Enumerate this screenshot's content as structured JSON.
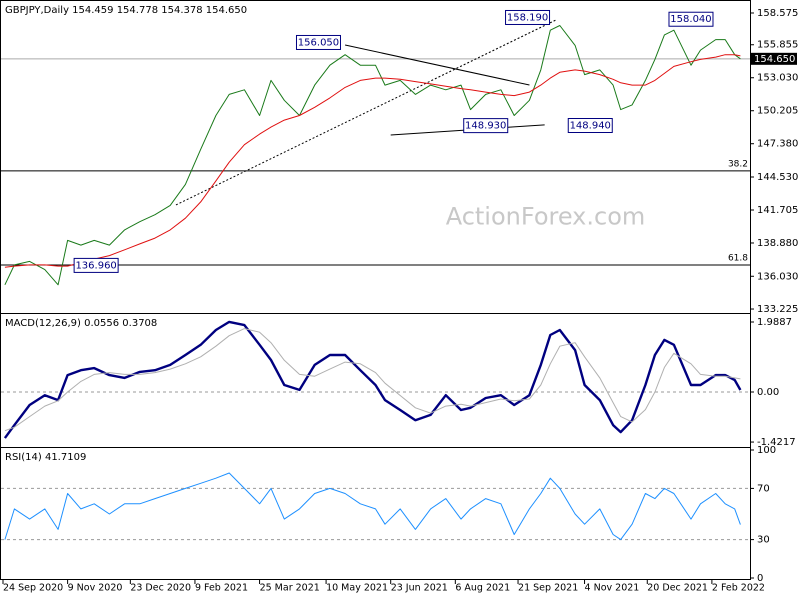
{
  "chart_data": [
    {
      "type": "line",
      "title": "GBPJPY,Daily 154.459 154.778 154.378 154.650",
      "watermark": "ActionForex.com",
      "x": [
        1,
        6,
        14,
        22,
        29,
        34,
        41,
        48,
        56,
        64,
        72,
        80,
        88,
        96,
        104,
        112,
        119,
        127,
        135,
        141,
        148,
        156,
        164,
        172,
        180,
        188,
        196,
        201,
        209,
        217,
        225,
        233,
        241,
        246,
        254,
        262,
        269,
        277,
        283,
        288,
        293,
        301,
        306,
        314,
        321,
        325,
        331,
        338,
        343,
        348,
        353,
        362,
        367,
        375,
        380,
        385,
        388
      ],
      "series": [
        {
          "color": "#1a7a1a",
          "style": "thin",
          "values": [
            135.3,
            137.0,
            137.3,
            136.6,
            135.3,
            139.1,
            138.7,
            139.1,
            138.7,
            140.0,
            140.7,
            141.3,
            142.1,
            143.9,
            146.9,
            149.8,
            151.6,
            152.0,
            149.8,
            152.8,
            151.1,
            149.8,
            152.4,
            154.1,
            155.0,
            154.1,
            154.1,
            152.4,
            152.8,
            151.6,
            152.4,
            152.0,
            152.4,
            150.3,
            151.6,
            152.0,
            149.8,
            151.1,
            153.7,
            157.1,
            157.5,
            155.8,
            153.3,
            153.7,
            152.4,
            150.3,
            150.7,
            152.8,
            154.6,
            156.7,
            157.1,
            154.1,
            155.4,
            156.3,
            156.3,
            155.0,
            154.65
          ]
        },
        {
          "color": "#e01010",
          "style": "thin",
          "values": [
            136.8,
            136.9,
            137.0,
            137.0,
            136.9,
            136.9,
            137.2,
            137.5,
            137.8,
            138.3,
            138.8,
            139.3,
            140.0,
            141.0,
            142.4,
            144.2,
            145.8,
            147.3,
            148.2,
            148.8,
            149.4,
            149.8,
            150.5,
            151.3,
            152.2,
            152.8,
            153.0,
            153.0,
            152.9,
            152.7,
            152.5,
            152.3,
            152.1,
            152.0,
            151.8,
            151.6,
            151.5,
            151.8,
            152.4,
            153.0,
            153.5,
            153.7,
            153.6,
            153.3,
            152.9,
            152.6,
            152.4,
            152.4,
            152.8,
            153.4,
            154.0,
            154.4,
            154.6,
            154.8,
            155.0,
            155.0,
            154.9
          ]
        }
      ],
      "xlim": [
        0,
        392
      ],
      "ylim": [
        132.97,
        159.43
      ],
      "yticks": [
        {
          "value": 158.575,
          "label": "158.575"
        },
        {
          "value": 155.855,
          "label": "155.855"
        },
        {
          "value": 153.03,
          "label": "153.030"
        },
        {
          "value": 150.205,
          "label": "150.205"
        },
        {
          "value": 147.38,
          "label": "147.380"
        },
        {
          "value": 144.53,
          "label": "144.530"
        },
        {
          "value": 141.705,
          "label": "141.705"
        },
        {
          "value": 138.88,
          "label": "138.880"
        },
        {
          "value": 136.03,
          "label": "136.030"
        },
        {
          "value": 133.225,
          "label": "133.225"
        }
      ],
      "last_price": {
        "value": 154.65,
        "label": "154.650"
      },
      "levels": [
        {
          "value": 145.05,
          "label": "38.2"
        },
        {
          "value": 137.0,
          "label": "61.8"
        }
      ],
      "trendlines": [
        {
          "x": [
            91,
            291
          ],
          "values": [
            142.14,
            157.98
          ],
          "dash": true
        },
        {
          "x": [
            180,
            277
          ],
          "values": [
            155.83,
            152.41
          ],
          "dash": false
        },
        {
          "x": [
            204,
            285
          ],
          "values": [
            148.13,
            148.99
          ],
          "dash": false
        }
      ],
      "annotations": [
        {
          "x": 166,
          "value": 156.05,
          "label": "156.050"
        },
        {
          "x": 276,
          "value": 158.19,
          "label": "158.190"
        },
        {
          "x": 254,
          "value": 148.93,
          "label": "148.930"
        },
        {
          "x": 309,
          "value": 148.94,
          "label": "148.940"
        },
        {
          "x": 362,
          "value": 158.04,
          "label": "158.040"
        },
        {
          "x": 49,
          "value": 136.96,
          "label": "136.960"
        }
      ]
    },
    {
      "type": "line",
      "title": "MACD(12,26,9) 0.0556 0.3708",
      "x": [
        1,
        6,
        14,
        22,
        29,
        34,
        41,
        48,
        56,
        64,
        72,
        80,
        88,
        96,
        104,
        112,
        119,
        127,
        135,
        141,
        148,
        156,
        164,
        172,
        180,
        188,
        196,
        201,
        209,
        217,
        225,
        233,
        241,
        246,
        254,
        262,
        269,
        277,
        283,
        288,
        293,
        301,
        306,
        314,
        321,
        325,
        331,
        338,
        343,
        348,
        353,
        362,
        367,
        375,
        380,
        385,
        388
      ],
      "series": [
        {
          "color": "#000080",
          "style": "thick",
          "values": [
            -1.31,
            -0.94,
            -0.37,
            -0.09,
            -0.23,
            0.48,
            0.62,
            0.68,
            0.48,
            0.4,
            0.57,
            0.62,
            0.77,
            1.05,
            1.34,
            1.76,
            1.99,
            1.9,
            1.34,
            0.91,
            0.2,
            0.06,
            0.77,
            1.05,
            1.05,
            0.62,
            0.2,
            -0.23,
            -0.51,
            -0.8,
            -0.65,
            -0.09,
            -0.51,
            -0.45,
            -0.17,
            -0.09,
            -0.37,
            -0.09,
            0.77,
            1.62,
            1.76,
            1.19,
            0.2,
            -0.23,
            -0.94,
            -1.14,
            -0.8,
            0.2,
            1.05,
            1.48,
            1.34,
            0.2,
            0.2,
            0.48,
            0.48,
            0.34,
            0.0556
          ]
        },
        {
          "color": "#b0b0b0",
          "style": "thin",
          "values": [
            -1.1,
            -1.0,
            -0.7,
            -0.4,
            -0.25,
            0.0,
            0.3,
            0.5,
            0.55,
            0.5,
            0.5,
            0.55,
            0.65,
            0.8,
            1.0,
            1.3,
            1.6,
            1.8,
            1.7,
            1.4,
            0.9,
            0.5,
            0.45,
            0.65,
            0.85,
            0.8,
            0.55,
            0.25,
            -0.1,
            -0.45,
            -0.6,
            -0.4,
            -0.35,
            -0.4,
            -0.3,
            -0.2,
            -0.25,
            -0.2,
            0.2,
            0.8,
            1.3,
            1.4,
            1.0,
            0.4,
            -0.3,
            -0.7,
            -0.85,
            -0.5,
            0.0,
            0.7,
            1.1,
            0.8,
            0.5,
            0.45,
            0.45,
            0.4,
            0.3708
          ]
        }
      ],
      "xlim": [
        0,
        392
      ],
      "ylim": [
        -1.534,
        2.159
      ],
      "yticks": [
        1.9887,
        {
          "value": 0,
          "label": "0.00"
        },
        -1.4217
      ],
      "reference_lines": [
        0
      ]
    },
    {
      "type": "line",
      "title": "RSI(14) 41.7109",
      "x": [
        1,
        6,
        14,
        22,
        29,
        34,
        41,
        48,
        56,
        64,
        72,
        80,
        88,
        96,
        104,
        112,
        119,
        127,
        135,
        141,
        148,
        156,
        164,
        172,
        180,
        188,
        196,
        201,
        209,
        217,
        225,
        233,
        241,
        246,
        254,
        262,
        269,
        277,
        283,
        288,
        293,
        301,
        306,
        314,
        321,
        325,
        331,
        338,
        343,
        348,
        353,
        362,
        367,
        375,
        380,
        385,
        388
      ],
      "series": [
        {
          "color": "#1e90ff",
          "style": "thin",
          "values": [
            30,
            54,
            46,
            54,
            38,
            66,
            54,
            58,
            50,
            58,
            58,
            62,
            66,
            70,
            74,
            78,
            82,
            70,
            58,
            70,
            46,
            54,
            66,
            70,
            66,
            58,
            54,
            42,
            54,
            38,
            54,
            62,
            46,
            54,
            62,
            58,
            34,
            54,
            66,
            78,
            70,
            50,
            42,
            54,
            34,
            30,
            42,
            66,
            62,
            70,
            66,
            46,
            58,
            66,
            58,
            54,
            41.7109
          ]
        }
      ],
      "xlim": [
        0,
        392
      ],
      "ylim": [
        0,
        100
      ],
      "yticks": [
        100,
        70,
        30,
        0
      ],
      "reference_lines": [
        70,
        30
      ],
      "xticks": [
        {
          "value": 0,
          "label": "24 Sep 2020"
        },
        {
          "value": 34,
          "label": "9 Nov 2020"
        },
        {
          "value": 67,
          "label": "23 Dec 2020"
        },
        {
          "value": 101,
          "label": "9 Feb 2021"
        },
        {
          "value": 135,
          "label": "25 Mar 2021"
        },
        {
          "value": 170,
          "label": "10 May 2021"
        },
        {
          "value": 204,
          "label": "23 Jun 2021"
        },
        {
          "value": 238,
          "label": "6 Aug 2021"
        },
        {
          "value": 271,
          "label": "21 Sep 2021"
        },
        {
          "value": 306,
          "label": "4 Nov 2021"
        },
        {
          "value": 339,
          "label": "20 Dec 2021"
        },
        {
          "value": 373,
          "label": "2 Feb 2022"
        }
      ]
    }
  ]
}
